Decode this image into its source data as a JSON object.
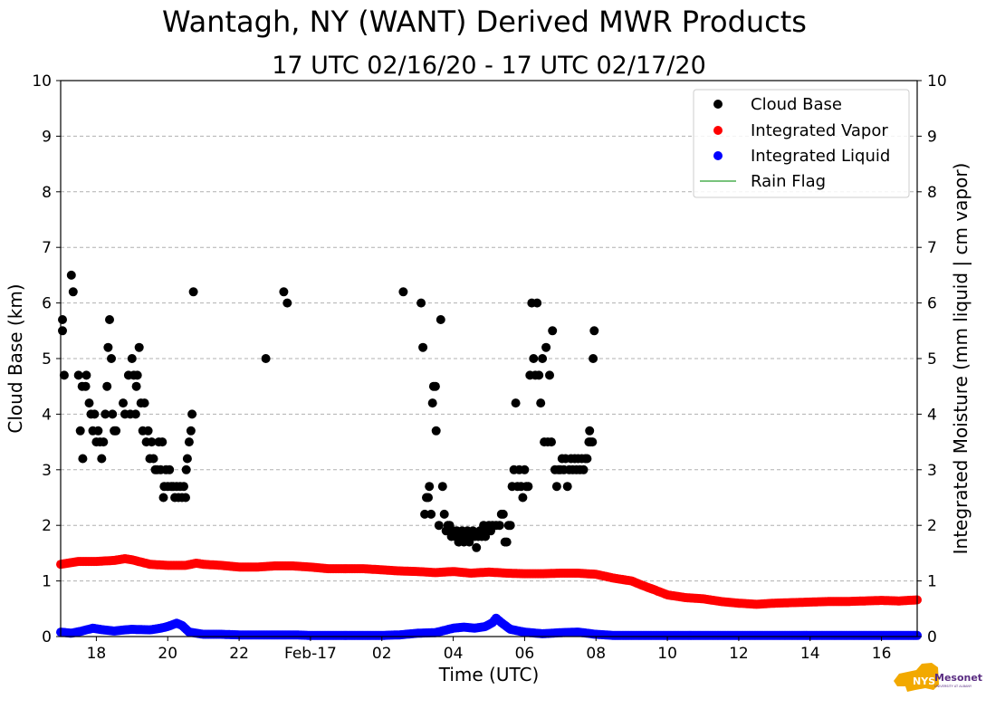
{
  "logo": {
    "text": "NYS Mesonet",
    "subtext": "UNIVERSITY AT ALBANY",
    "color": "#5a2d82",
    "state_color": "#f2a900"
  },
  "chart_data": {
    "type": "scatter",
    "title": "Wantagh, NY (WANT) Derived MWR Products",
    "subtitle": "17 UTC 02/16/20 - 17 UTC 02/17/20",
    "xlabel": "Time (UTC)",
    "ylabel": "Cloud Base (km)",
    "ylabel_right": "Integrated Moisture (mm liquid | cm vapor)",
    "xlim": [
      17,
      41
    ],
    "ylim": [
      0,
      10
    ],
    "grid": "y-dashed",
    "legend_position": "top-right",
    "x_ticks": [
      {
        "value": 18,
        "label": "18"
      },
      {
        "value": 20,
        "label": "20"
      },
      {
        "value": 22,
        "label": "22"
      },
      {
        "value": 24,
        "label": "Feb-17"
      },
      {
        "value": 26,
        "label": "02"
      },
      {
        "value": 28,
        "label": "04"
      },
      {
        "value": 30,
        "label": "06"
      },
      {
        "value": 32,
        "label": "08"
      },
      {
        "value": 34,
        "label": "10"
      },
      {
        "value": 36,
        "label": "12"
      },
      {
        "value": 38,
        "label": "14"
      },
      {
        "value": 40,
        "label": "16"
      }
    ],
    "y_ticks": [
      0,
      1,
      2,
      3,
      4,
      5,
      6,
      7,
      8,
      9,
      10
    ],
    "series": [
      {
        "name": "Cloud Base",
        "kind": "scatter",
        "color": "#000000",
        "points": [
          [
            17.05,
            5.7
          ],
          [
            17.05,
            5.5
          ],
          [
            17.1,
            4.7
          ],
          [
            17.3,
            6.5
          ],
          [
            17.35,
            6.2
          ],
          [
            17.5,
            4.7
          ],
          [
            17.55,
            3.7
          ],
          [
            17.6,
            4.5
          ],
          [
            17.62,
            3.2
          ],
          [
            17.7,
            4.5
          ],
          [
            17.72,
            4.7
          ],
          [
            17.8,
            4.2
          ],
          [
            17.85,
            4.0
          ],
          [
            17.9,
            3.7
          ],
          [
            17.95,
            4.0
          ],
          [
            18.0,
            3.5
          ],
          [
            18.05,
            3.7
          ],
          [
            18.1,
            3.5
          ],
          [
            18.15,
            3.2
          ],
          [
            18.2,
            3.5
          ],
          [
            18.25,
            4.0
          ],
          [
            18.3,
            4.5
          ],
          [
            18.33,
            5.2
          ],
          [
            18.37,
            5.7
          ],
          [
            18.42,
            5.0
          ],
          [
            18.45,
            4.0
          ],
          [
            18.5,
            3.7
          ],
          [
            18.55,
            3.7
          ],
          [
            18.75,
            4.2
          ],
          [
            18.8,
            4.0
          ],
          [
            18.9,
            4.7
          ],
          [
            18.95,
            4.0
          ],
          [
            19.0,
            5.0
          ],
          [
            19.05,
            4.7
          ],
          [
            19.1,
            4.0
          ],
          [
            19.12,
            4.5
          ],
          [
            19.15,
            4.7
          ],
          [
            19.2,
            5.2
          ],
          [
            19.25,
            4.2
          ],
          [
            19.3,
            3.7
          ],
          [
            19.35,
            4.2
          ],
          [
            19.4,
            3.5
          ],
          [
            19.45,
            3.7
          ],
          [
            19.5,
            3.2
          ],
          [
            19.55,
            3.5
          ],
          [
            19.6,
            3.2
          ],
          [
            19.65,
            3.0
          ],
          [
            19.7,
            3.0
          ],
          [
            19.75,
            3.5
          ],
          [
            19.8,
            3.0
          ],
          [
            19.85,
            3.5
          ],
          [
            19.88,
            2.5
          ],
          [
            19.9,
            2.7
          ],
          [
            19.95,
            3.0
          ],
          [
            20.0,
            2.7
          ],
          [
            20.05,
            3.0
          ],
          [
            20.1,
            2.7
          ],
          [
            20.15,
            2.7
          ],
          [
            20.2,
            2.5
          ],
          [
            20.25,
            2.7
          ],
          [
            20.3,
            2.5
          ],
          [
            20.35,
            2.7
          ],
          [
            20.4,
            2.5
          ],
          [
            20.45,
            2.7
          ],
          [
            20.5,
            2.5
          ],
          [
            20.52,
            3.0
          ],
          [
            20.55,
            3.2
          ],
          [
            20.6,
            3.5
          ],
          [
            20.65,
            3.7
          ],
          [
            20.68,
            4.0
          ],
          [
            20.72,
            6.2
          ],
          [
            22.75,
            5.0
          ],
          [
            23.25,
            6.2
          ],
          [
            23.35,
            6.0
          ],
          [
            26.6,
            6.2
          ],
          [
            27.1,
            6.0
          ],
          [
            27.15,
            5.2
          ],
          [
            27.2,
            2.2
          ],
          [
            27.25,
            2.5
          ],
          [
            27.3,
            2.5
          ],
          [
            27.33,
            2.7
          ],
          [
            27.38,
            2.2
          ],
          [
            27.42,
            4.2
          ],
          [
            27.45,
            4.5
          ],
          [
            27.5,
            4.5
          ],
          [
            27.52,
            3.7
          ],
          [
            27.6,
            2.0
          ],
          [
            27.65,
            5.7
          ],
          [
            27.7,
            2.7
          ],
          [
            27.75,
            2.2
          ],
          [
            27.8,
            1.9
          ],
          [
            27.85,
            2.0
          ],
          [
            27.9,
            2.0
          ],
          [
            27.95,
            1.8
          ],
          [
            28.0,
            1.9
          ],
          [
            28.05,
            1.8
          ],
          [
            28.1,
            1.9
          ],
          [
            28.15,
            1.7
          ],
          [
            28.2,
            1.8
          ],
          [
            28.25,
            1.9
          ],
          [
            28.3,
            1.7
          ],
          [
            28.35,
            1.8
          ],
          [
            28.4,
            1.9
          ],
          [
            28.45,
            1.7
          ],
          [
            28.5,
            1.8
          ],
          [
            28.55,
            1.9
          ],
          [
            28.6,
            1.8
          ],
          [
            28.65,
            1.6
          ],
          [
            28.7,
            1.8
          ],
          [
            28.75,
            1.9
          ],
          [
            28.8,
            1.8
          ],
          [
            28.85,
            2.0
          ],
          [
            28.9,
            1.8
          ],
          [
            28.95,
            1.9
          ],
          [
            29.0,
            2.0
          ],
          [
            29.05,
            1.9
          ],
          [
            29.1,
            2.0
          ],
          [
            29.2,
            2.0
          ],
          [
            29.3,
            2.0
          ],
          [
            29.35,
            2.2
          ],
          [
            29.4,
            2.2
          ],
          [
            29.45,
            1.7
          ],
          [
            29.5,
            1.7
          ],
          [
            29.55,
            2.0
          ],
          [
            29.6,
            2.0
          ],
          [
            29.65,
            2.7
          ],
          [
            29.7,
            3.0
          ],
          [
            29.75,
            4.2
          ],
          [
            29.8,
            2.7
          ],
          [
            29.85,
            3.0
          ],
          [
            29.9,
            2.7
          ],
          [
            29.95,
            2.5
          ],
          [
            30.0,
            3.0
          ],
          [
            30.05,
            2.7
          ],
          [
            30.1,
            2.7
          ],
          [
            30.15,
            4.7
          ],
          [
            30.2,
            6.0
          ],
          [
            30.25,
            5.0
          ],
          [
            30.3,
            4.7
          ],
          [
            30.35,
            6.0
          ],
          [
            30.4,
            4.7
          ],
          [
            30.45,
            4.2
          ],
          [
            30.5,
            5.0
          ],
          [
            30.55,
            3.5
          ],
          [
            30.6,
            5.2
          ],
          [
            30.65,
            3.5
          ],
          [
            30.7,
            4.7
          ],
          [
            30.75,
            3.5
          ],
          [
            30.78,
            5.5
          ],
          [
            30.85,
            3.0
          ],
          [
            30.9,
            2.7
          ],
          [
            30.95,
            3.0
          ],
          [
            31.0,
            3.0
          ],
          [
            31.05,
            3.2
          ],
          [
            31.1,
            3.0
          ],
          [
            31.15,
            3.2
          ],
          [
            31.2,
            2.7
          ],
          [
            31.25,
            3.0
          ],
          [
            31.3,
            3.2
          ],
          [
            31.35,
            3.0
          ],
          [
            31.4,
            3.2
          ],
          [
            31.45,
            3.0
          ],
          [
            31.5,
            3.2
          ],
          [
            31.55,
            3.0
          ],
          [
            31.6,
            3.2
          ],
          [
            31.65,
            3.0
          ],
          [
            31.7,
            3.2
          ],
          [
            31.75,
            3.2
          ],
          [
            31.8,
            3.5
          ],
          [
            31.82,
            3.7
          ],
          [
            31.85,
            3.5
          ],
          [
            31.9,
            3.5
          ],
          [
            31.92,
            5.0
          ],
          [
            31.95,
            5.5
          ]
        ]
      },
      {
        "name": "Integrated Vapor",
        "kind": "scatter",
        "color": "#ff0000",
        "points": [
          [
            17.0,
            1.3
          ],
          [
            17.5,
            1.35
          ],
          [
            18.0,
            1.35
          ],
          [
            18.5,
            1.37
          ],
          [
            18.8,
            1.4
          ],
          [
            19.0,
            1.38
          ],
          [
            19.5,
            1.3
          ],
          [
            20.0,
            1.28
          ],
          [
            20.5,
            1.28
          ],
          [
            20.8,
            1.32
          ],
          [
            21.0,
            1.3
          ],
          [
            21.5,
            1.28
          ],
          [
            22.0,
            1.25
          ],
          [
            22.5,
            1.25
          ],
          [
            23.0,
            1.27
          ],
          [
            23.5,
            1.27
          ],
          [
            24.0,
            1.25
          ],
          [
            24.5,
            1.22
          ],
          [
            25.0,
            1.22
          ],
          [
            25.5,
            1.22
          ],
          [
            26.0,
            1.2
          ],
          [
            26.5,
            1.18
          ],
          [
            27.0,
            1.17
          ],
          [
            27.5,
            1.15
          ],
          [
            28.0,
            1.17
          ],
          [
            28.5,
            1.14
          ],
          [
            29.0,
            1.16
          ],
          [
            29.5,
            1.14
          ],
          [
            30.0,
            1.13
          ],
          [
            30.5,
            1.13
          ],
          [
            31.0,
            1.14
          ],
          [
            31.5,
            1.14
          ],
          [
            32.0,
            1.12
          ],
          [
            32.5,
            1.05
          ],
          [
            33.0,
            1.0
          ],
          [
            33.3,
            0.92
          ],
          [
            33.6,
            0.85
          ],
          [
            34.0,
            0.75
          ],
          [
            34.5,
            0.7
          ],
          [
            35.0,
            0.68
          ],
          [
            35.5,
            0.63
          ],
          [
            36.0,
            0.6
          ],
          [
            36.5,
            0.58
          ],
          [
            37.0,
            0.6
          ],
          [
            37.5,
            0.61
          ],
          [
            38.0,
            0.62
          ],
          [
            38.5,
            0.63
          ],
          [
            39.0,
            0.63
          ],
          [
            39.5,
            0.64
          ],
          [
            40.0,
            0.65
          ],
          [
            40.5,
            0.64
          ],
          [
            41.0,
            0.66
          ]
        ]
      },
      {
        "name": "Integrated Liquid",
        "kind": "scatter",
        "color": "#0000ff",
        "points": [
          [
            17.0,
            0.08
          ],
          [
            17.3,
            0.06
          ],
          [
            17.6,
            0.1
          ],
          [
            17.9,
            0.15
          ],
          [
            18.2,
            0.12
          ],
          [
            18.5,
            0.1
          ],
          [
            18.8,
            0.12
          ],
          [
            19.0,
            0.13
          ],
          [
            19.5,
            0.12
          ],
          [
            19.8,
            0.15
          ],
          [
            20.0,
            0.18
          ],
          [
            20.25,
            0.24
          ],
          [
            20.4,
            0.2
          ],
          [
            20.6,
            0.08
          ],
          [
            21.0,
            0.04
          ],
          [
            21.5,
            0.04
          ],
          [
            22.0,
            0.03
          ],
          [
            22.5,
            0.03
          ],
          [
            23.0,
            0.03
          ],
          [
            23.5,
            0.03
          ],
          [
            24.0,
            0.02
          ],
          [
            24.5,
            0.02
          ],
          [
            25.0,
            0.02
          ],
          [
            25.5,
            0.02
          ],
          [
            26.0,
            0.02
          ],
          [
            26.5,
            0.03
          ],
          [
            27.0,
            0.06
          ],
          [
            27.5,
            0.07
          ],
          [
            28.0,
            0.15
          ],
          [
            28.3,
            0.17
          ],
          [
            28.6,
            0.15
          ],
          [
            28.9,
            0.18
          ],
          [
            29.1,
            0.25
          ],
          [
            29.2,
            0.33
          ],
          [
            29.35,
            0.25
          ],
          [
            29.6,
            0.13
          ],
          [
            30.0,
            0.08
          ],
          [
            30.5,
            0.05
          ],
          [
            31.0,
            0.07
          ],
          [
            31.5,
            0.08
          ],
          [
            32.0,
            0.04
          ],
          [
            32.5,
            0.02
          ],
          [
            33.0,
            0.02
          ],
          [
            34.0,
            0.02
          ],
          [
            35.0,
            0.02
          ],
          [
            36.0,
            0.02
          ],
          [
            37.0,
            0.02
          ],
          [
            38.0,
            0.02
          ],
          [
            39.0,
            0.02
          ],
          [
            40.0,
            0.02
          ],
          [
            41.0,
            0.02
          ]
        ]
      },
      {
        "name": "Rain Flag",
        "kind": "line",
        "color": "#4caf50",
        "points": []
      }
    ]
  }
}
